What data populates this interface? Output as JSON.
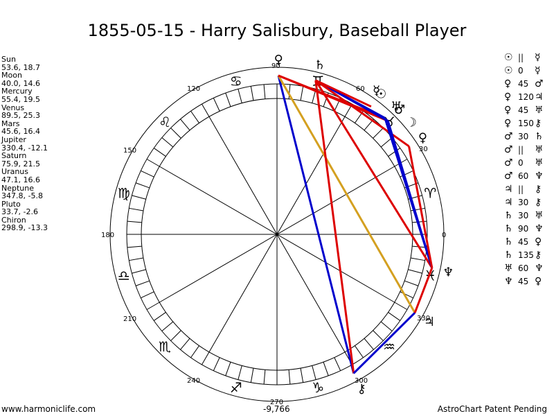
{
  "title": "1855-05-15 - Harry Salisbury, Baseball Player",
  "planets": [
    {
      "name": "Sun",
      "coords": "53.6, 18.7",
      "symbol": "☉",
      "lon": 53.6
    },
    {
      "name": "Moon",
      "coords": "40.0, 14.6",
      "symbol": "☽",
      "lon": 40.0
    },
    {
      "name": "Mercury",
      "coords": "55.4, 19.5",
      "symbol": "☿",
      "lon": 55.4
    },
    {
      "name": "Venus",
      "coords": "89.5, 25.3",
      "symbol": "♀",
      "lon": 89.5
    },
    {
      "name": "Mars",
      "coords": "45.6, 16.4",
      "symbol": "♂",
      "lon": 45.6
    },
    {
      "name": "Jupiter",
      "coords": "330.4, -12.1",
      "symbol": "♃",
      "lon": 330.4
    },
    {
      "name": "Saturn",
      "coords": "75.9, 21.5",
      "symbol": "♄",
      "lon": 75.9
    },
    {
      "name": "Uranus",
      "coords": "47.1, 16.6",
      "symbol": "♅",
      "lon": 47.1
    },
    {
      "name": "Neptune",
      "coords": "347.8, -5.8",
      "symbol": "♆",
      "lon": 347.8
    },
    {
      "name": "Pluto",
      "coords": "33.7, -2.6",
      "symbol": "♀",
      "lon": 33.7
    },
    {
      "name": "Chiron",
      "coords": "298.9, -13.3",
      "symbol": "⚷",
      "lon": 298.9
    }
  ],
  "aspects": [
    {
      "p1": "☉",
      "sym": "||",
      "p2": "☿"
    },
    {
      "p1": "☉",
      "sym": "0",
      "p2": "☿"
    },
    {
      "p1": "♀",
      "sym": "45",
      "p2": "♂"
    },
    {
      "p1": "♀",
      "sym": "120",
      "p2": "♃"
    },
    {
      "p1": "♀",
      "sym": "45",
      "p2": "♅"
    },
    {
      "p1": "♀",
      "sym": "150",
      "p2": "⚷"
    },
    {
      "p1": "♂",
      "sym": "30",
      "p2": "♄"
    },
    {
      "p1": "♂",
      "sym": "||",
      "p2": "♅"
    },
    {
      "p1": "♂",
      "sym": "0",
      "p2": "♅"
    },
    {
      "p1": "♂",
      "sym": "60",
      "p2": "♆"
    },
    {
      "p1": "♃",
      "sym": "||",
      "p2": "⚷"
    },
    {
      "p1": "♃",
      "sym": "30",
      "p2": "⚷"
    },
    {
      "p1": "♄",
      "sym": "30",
      "p2": "♅"
    },
    {
      "p1": "♄",
      "sym": "90",
      "p2": "♆"
    },
    {
      "p1": "♄",
      "sym": "45",
      "p2": "♀"
    },
    {
      "p1": "♄",
      "sym": "135",
      "p2": "⚷"
    },
    {
      "p1": "♅",
      "sym": "60",
      "p2": "♆"
    },
    {
      "p1": "♆",
      "sym": "45",
      "p2": "♀"
    }
  ],
  "degree_labels": {
    "d0": "0",
    "d30": "30",
    "d60": "60",
    "d90": "90",
    "d120": "120",
    "d150": "150",
    "d180": "180",
    "d210": "210",
    "d240": "240",
    "d270": "270",
    "d300": "300",
    "d330": "330"
  },
  "zodiac_signs": [
    "♈",
    "♉",
    "♊",
    "♋",
    "♌",
    "♍",
    "♎",
    "♏",
    "♐",
    "♑",
    "♒",
    "♓"
  ],
  "bottom_value": "-9,766",
  "aspect_lines": [
    {
      "from": 89.5,
      "to": 298.9,
      "color": "#0000cc"
    },
    {
      "from": 89.5,
      "to": 330.4,
      "color": "#d4a020"
    },
    {
      "from": 89.5,
      "to": 45.6,
      "color": "#dd0000"
    },
    {
      "from": 89.5,
      "to": 47.1,
      "color": "#dd0000"
    },
    {
      "from": 75.9,
      "to": 45.6,
      "color": "#0000cc"
    },
    {
      "from": 75.9,
      "to": 47.1,
      "color": "#0000cc"
    },
    {
      "from": 75.9,
      "to": 33.7,
      "color": "#dd0000"
    },
    {
      "from": 75.9,
      "to": 298.9,
      "color": "#dd0000"
    },
    {
      "from": 75.9,
      "to": 347.8,
      "color": "#dd0000"
    },
    {
      "from": 45.6,
      "to": 347.8,
      "color": "#0000cc"
    },
    {
      "from": 47.1,
      "to": 347.8,
      "color": "#0000cc"
    },
    {
      "from": 33.7,
      "to": 347.8,
      "color": "#dd0000"
    },
    {
      "from": 330.4,
      "to": 298.9,
      "color": "#0000cc"
    },
    {
      "from": 330.4,
      "to": 347.8,
      "color": "#dd0000"
    },
    {
      "from": 53.6,
      "to": 75.9,
      "color": "#dd0000"
    }
  ],
  "footer": {
    "left": "www.harmoniclife.com",
    "right": "AstroChart Patent Pending"
  }
}
